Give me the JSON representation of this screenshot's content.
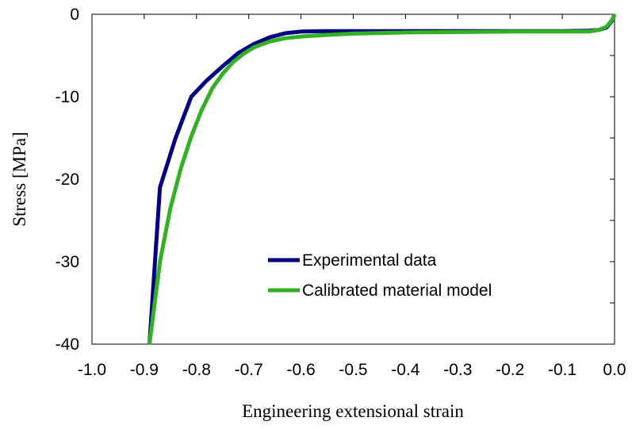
{
  "chart_data": {
    "type": "line",
    "title": "",
    "xlabel": "Engineering extensional strain",
    "ylabel": "Stress [MPa]",
    "xlim": [
      -1.0,
      0.0
    ],
    "ylim": [
      -40,
      0
    ],
    "x_ticks": [
      -1.0,
      -0.9,
      -0.8,
      -0.7,
      -0.6,
      -0.5,
      -0.4,
      -0.3,
      -0.2,
      -0.1,
      0.0
    ],
    "x_tick_labels": [
      "-1.0",
      "-0.9",
      "-0.8",
      "-0.7",
      "-0.6",
      "-0.5",
      "-0.4",
      "-0.3",
      "-0.2",
      "-0.1",
      "0.0"
    ],
    "y_ticks": [
      0,
      -10,
      -20,
      -30,
      -40
    ],
    "y_tick_labels": [
      "0",
      "-10",
      "-20",
      "-30",
      "-40"
    ],
    "grid": false,
    "legend": "center-right",
    "series": [
      {
        "name": "Experimental data",
        "color": "#000080",
        "x": [
          -0.89,
          -0.87,
          -0.84,
          -0.81,
          -0.78,
          -0.75,
          -0.72,
          -0.69,
          -0.66,
          -0.63,
          -0.6,
          -0.55,
          -0.5,
          -0.4,
          -0.3,
          -0.2,
          -0.1,
          -0.05,
          -0.03,
          -0.015,
          -0.005,
          0.0
        ],
        "y": [
          -40.0,
          -21.0,
          -15.0,
          -10.0,
          -8.0,
          -6.3,
          -4.7,
          -3.6,
          -2.8,
          -2.3,
          -2.1,
          -2.05,
          -2.05,
          -2.05,
          -2.05,
          -2.05,
          -2.05,
          -2.0,
          -1.9,
          -1.6,
          -0.8,
          0.0
        ]
      },
      {
        "name": "Calibrated material model",
        "color": "#33b024",
        "x": [
          -0.89,
          -0.87,
          -0.85,
          -0.83,
          -0.81,
          -0.79,
          -0.77,
          -0.75,
          -0.73,
          -0.71,
          -0.69,
          -0.66,
          -0.63,
          -0.6,
          -0.55,
          -0.5,
          -0.4,
          -0.3,
          -0.2,
          -0.1,
          -0.05,
          -0.03,
          -0.015,
          -0.005,
          0.0
        ],
        "y": [
          -40.0,
          -30.0,
          -23.5,
          -18.7,
          -14.8,
          -11.6,
          -9.0,
          -7.2,
          -5.8,
          -4.8,
          -4.0,
          -3.3,
          -2.9,
          -2.7,
          -2.5,
          -2.35,
          -2.2,
          -2.15,
          -2.1,
          -2.1,
          -2.1,
          -1.9,
          -1.5,
          -0.7,
          0.0
        ]
      }
    ]
  }
}
